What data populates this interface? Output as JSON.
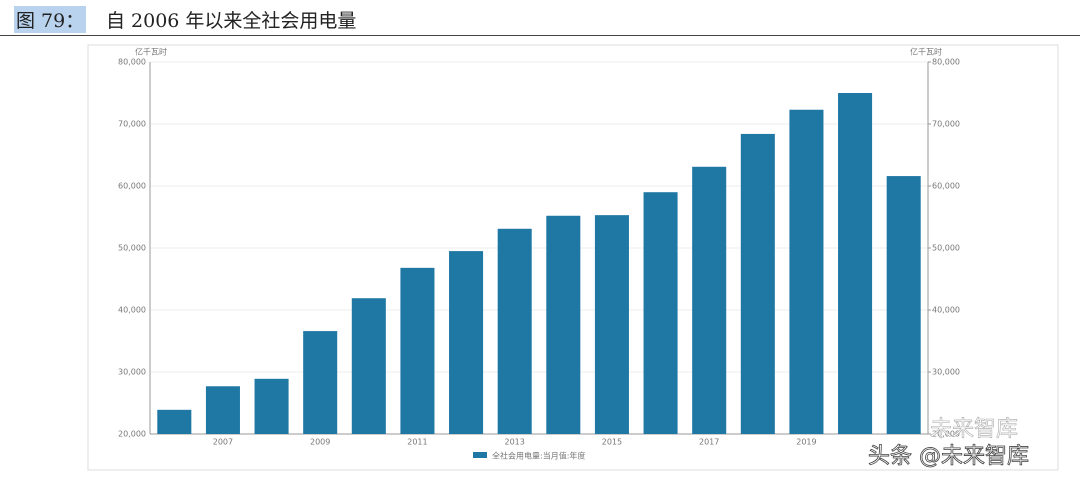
{
  "chart_data": {
    "type": "bar",
    "figure_label": "图 79：",
    "title": "自 2006 年以来全社会用电量",
    "y_unit": "亿千瓦时",
    "y2_unit": "亿千瓦时",
    "categories": [
      null,
      "2007",
      null,
      "2009",
      null,
      "2011",
      null,
      "2013",
      null,
      "2015",
      null,
      "2017",
      null,
      "2019",
      null,
      null
    ],
    "series": [
      {
        "name": "全社会用电量:当月值:年度",
        "color": "#1f77a4",
        "values": [
          23900,
          27700,
          28900,
          36600,
          41900,
          46800,
          49500,
          53100,
          55200,
          55300,
          59000,
          63100,
          68400,
          72300,
          75000,
          61600
        ]
      }
    ],
    "ylim": [
      20000,
      80000
    ],
    "yticks": [
      {
        "value": 20000,
        "label": "20,000"
      },
      {
        "value": 30000,
        "label": "30,000"
      },
      {
        "value": 40000,
        "label": "40,000"
      },
      {
        "value": 50000,
        "label": "50,000"
      },
      {
        "value": 60000,
        "label": "60,000"
      },
      {
        "value": 70000,
        "label": "70,000"
      },
      {
        "value": 80000,
        "label": "80,000"
      }
    ],
    "y2lim": [
      20000,
      80000
    ],
    "y2ticks": [
      {
        "value": 20000,
        "label": "20,000"
      },
      {
        "value": 30000,
        "label": "30,000"
      },
      {
        "value": 40000,
        "label": "40,000"
      },
      {
        "value": 50000,
        "label": "50,000"
      },
      {
        "value": 60000,
        "label": "60,000"
      },
      {
        "value": 70000,
        "label": "70,000"
      },
      {
        "value": 80000,
        "label": "80,000"
      }
    ],
    "grid": true,
    "legend": "bottom",
    "watermark": "头条 @未来智库",
    "watermark_logo": "未来智库"
  }
}
